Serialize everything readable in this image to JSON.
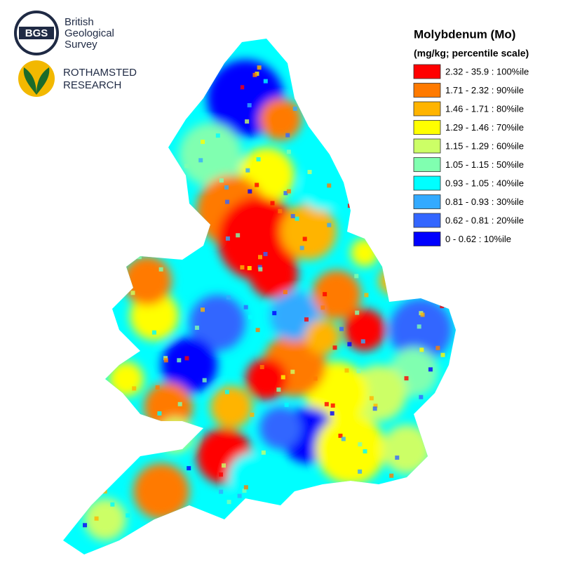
{
  "logos": {
    "bgs": {
      "mark": "BGS",
      "lines": [
        "British",
        "Geological",
        "Survey"
      ]
    },
    "rothamsted": {
      "lines": [
        "ROTHAMSTED",
        "RESEARCH"
      ]
    }
  },
  "legend": {
    "title": "Molybdenum (Mo)",
    "subtitle": "(mg/kg; percentile scale)",
    "items": [
      {
        "label": "2.32 - 35.9 : 100%ile",
        "color": "#ff0000"
      },
      {
        "label": "1.71 - 2.32 : 90%ile",
        "color": "#ff7a00"
      },
      {
        "label": "1.46 - 1.71 : 80%ile",
        "color": "#ffb400"
      },
      {
        "label": "1.29 - 1.46 : 70%ile",
        "color": "#ffff00"
      },
      {
        "label": "1.15 - 1.29 : 60%ile",
        "color": "#ccff66"
      },
      {
        "label": "1.05 - 1.15 : 50%ile",
        "color": "#80ffb0"
      },
      {
        "label": "0.93 - 1.05 : 40%ile",
        "color": "#00ffff"
      },
      {
        "label": "0.81 - 0.93 : 30%ile",
        "color": "#33aaff"
      },
      {
        "label": "0.62 - 0.81 : 20%ile",
        "color": "#3366ff"
      },
      {
        "label": "0 - 0.62 : 10%ile",
        "color": "#0000ff"
      }
    ]
  }
}
